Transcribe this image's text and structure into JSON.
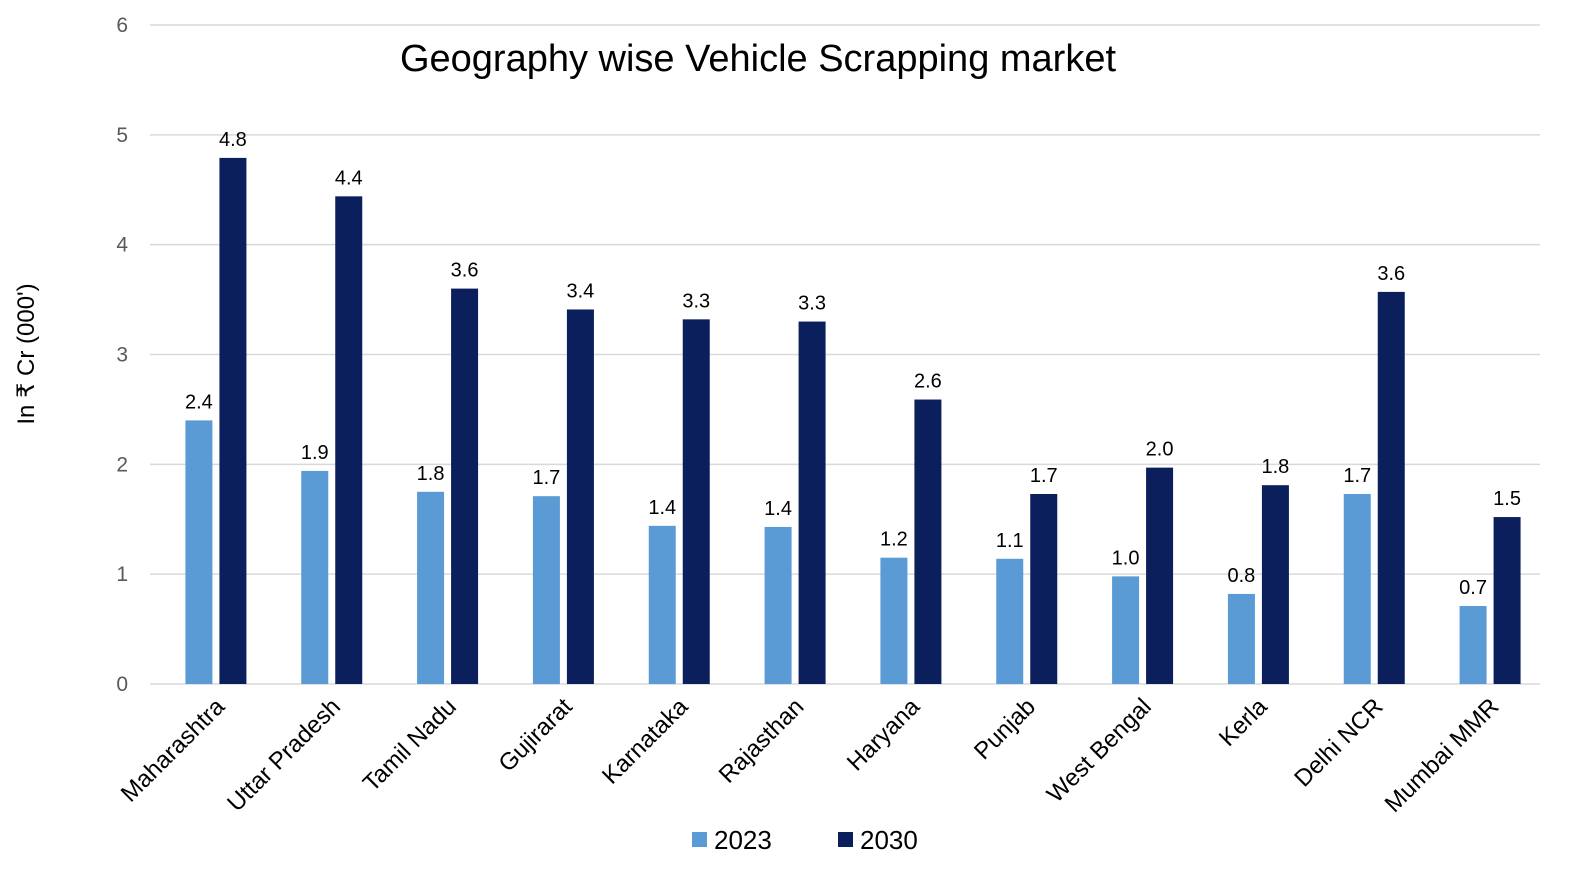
{
  "chart_data": {
    "type": "bar",
    "title": "Geography wise Vehicle Scrapping market",
    "ylabel": "In ₹ Cr (000')",
    "xlabel": "",
    "ylim": [
      0,
      6
    ],
    "yticks": [
      0,
      1,
      2,
      3,
      4,
      5,
      6
    ],
    "grid": true,
    "legend_position": "bottom",
    "categories": [
      "Maharashtra",
      "Uttar Pradesh",
      "Tamil Nadu",
      "Gujirarat",
      "Karnataka",
      "Rajasthan",
      "Haryana",
      "Punjab",
      "West Bengal",
      "Kerla",
      "Delhi NCR",
      "Mumbai MMR"
    ],
    "series": [
      {
        "name": "2023",
        "color": "#5b9bd5",
        "values": [
          2.4,
          1.94,
          1.75,
          1.71,
          1.44,
          1.43,
          1.15,
          1.14,
          0.98,
          0.82,
          1.73,
          0.71
        ],
        "labels": [
          "2.4",
          "1.9",
          "1.8",
          "1.7",
          "1.4",
          "1.4",
          "1.2",
          "1.1",
          "1.0",
          "0.8",
          "1.7",
          "0.7"
        ]
      },
      {
        "name": "2030",
        "color": "#0a1f5c",
        "values": [
          4.79,
          4.44,
          3.6,
          3.41,
          3.32,
          3.3,
          2.59,
          1.73,
          1.97,
          1.81,
          3.57,
          1.52
        ],
        "labels": [
          "4.8",
          "4.4",
          "3.6",
          "3.4",
          "3.3",
          "3.3",
          "2.6",
          "1.7",
          "2.0",
          "1.8",
          "3.6",
          "1.5"
        ]
      }
    ]
  }
}
